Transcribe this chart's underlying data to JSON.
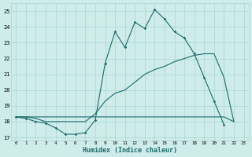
{
  "xlabel": "Humidex (Indice chaleur)",
  "bg_color": "#ceecea",
  "grid_color": "#aad4d1",
  "line_color": "#1a6b6b",
  "x_values": [
    0,
    1,
    2,
    3,
    4,
    5,
    6,
    7,
    8,
    9,
    10,
    11,
    12,
    13,
    14,
    15,
    16,
    17,
    18,
    19,
    20,
    21,
    22,
    23
  ],
  "line1_y": [
    18.3,
    18.2,
    18.0,
    17.9,
    17.6,
    17.2,
    17.2,
    17.3,
    18.1,
    21.7,
    23.7,
    22.7,
    24.3,
    23.9,
    25.1,
    24.5,
    23.7,
    23.3,
    22.3,
    20.8,
    19.3,
    17.8,
    null,
    null
  ],
  "line2_y": [
    18.3,
    18.3,
    18.2,
    18.0,
    18.0,
    18.0,
    18.0,
    18.0,
    18.5,
    19.3,
    19.8,
    20.0,
    20.5,
    21.0,
    21.3,
    21.5,
    21.8,
    22.0,
    22.2,
    22.3,
    22.3,
    20.8,
    18.0,
    null
  ],
  "line3_y": [
    18.3,
    18.3,
    18.3,
    18.3,
    18.3,
    18.3,
    18.3,
    18.3,
    18.3,
    18.3,
    18.3,
    18.3,
    18.3,
    18.3,
    18.3,
    18.3,
    18.3,
    18.3,
    18.3,
    18.3,
    18.3,
    18.3,
    18.0,
    null
  ],
  "ylim": [
    16.8,
    25.5
  ],
  "xlim": [
    -0.5,
    23.5
  ],
  "yticks": [
    17,
    18,
    19,
    20,
    21,
    22,
    23,
    24,
    25
  ],
  "xticks": [
    0,
    1,
    2,
    3,
    4,
    5,
    6,
    7,
    8,
    9,
    10,
    11,
    12,
    13,
    14,
    15,
    16,
    17,
    18,
    19,
    20,
    21,
    22,
    23
  ]
}
